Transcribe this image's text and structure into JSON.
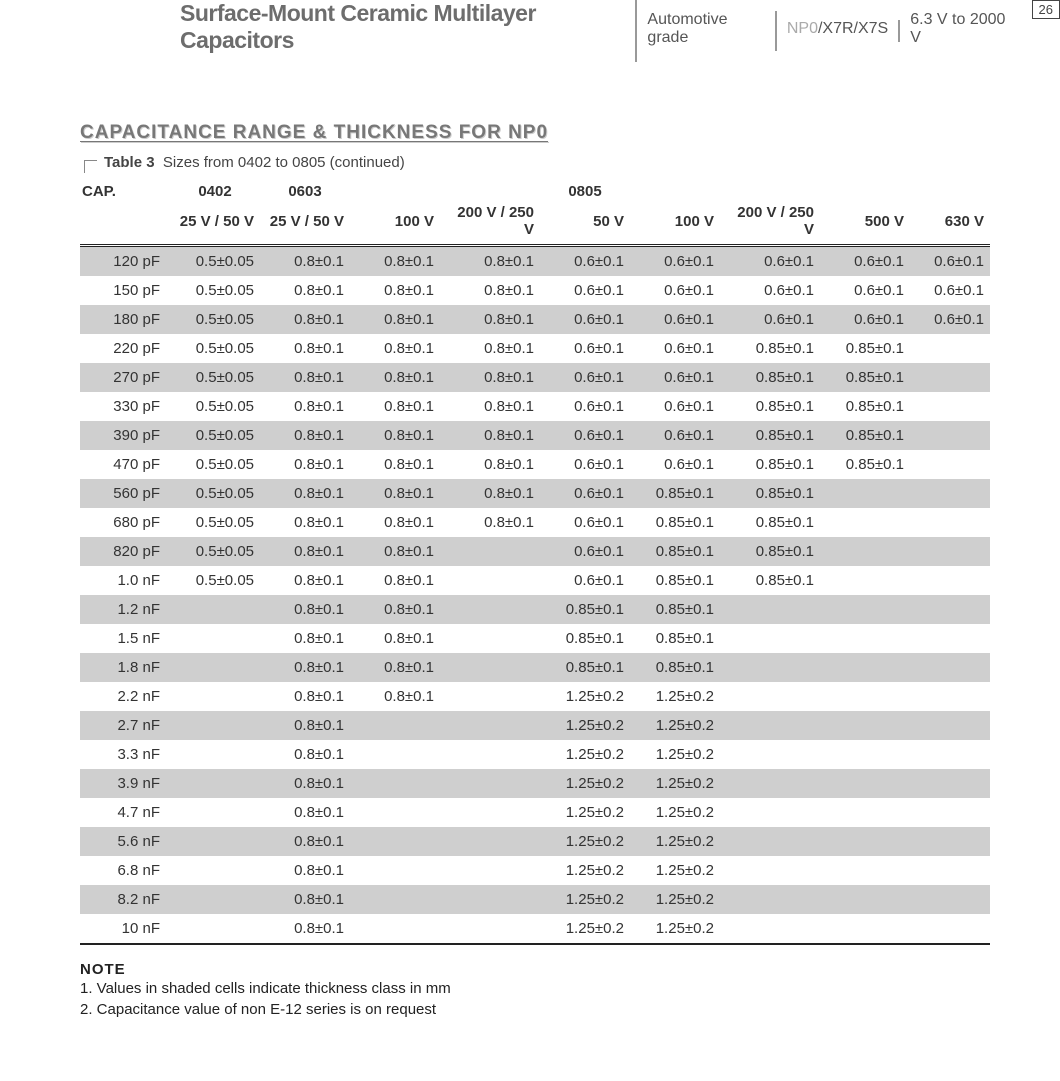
{
  "header": {
    "title": "Surface-Mount Ceramic Multilayer Capacitors",
    "grade": "Automotive grade",
    "dielectric_gray": "NP0",
    "dielectric_rest": "/X7R/X7S",
    "voltage": "6.3 V to 2000 V",
    "page": "26"
  },
  "section_title": "CAPACITANCE RANGE & THICKNESS FOR NP0",
  "table_label": "Table 3",
  "table_desc": "Sizes from 0402 to 0805 (continued)",
  "columns": {
    "cap": "CAP.",
    "sizes": [
      "0402",
      "0603",
      "0805"
    ],
    "voltages": [
      "25 V / 50 V",
      "25 V / 50 V",
      "100 V",
      "200 V / 250 V",
      "50 V",
      "100 V",
      "200 V / 250 V",
      "500 V",
      "630 V"
    ]
  },
  "rows": [
    {
      "cap": "120 pF",
      "v": [
        "0.5±0.05",
        "0.8±0.1",
        "0.8±0.1",
        "0.8±0.1",
        "0.6±0.1",
        "0.6±0.1",
        "0.6±0.1",
        "0.6±0.1",
        "0.6±0.1"
      ]
    },
    {
      "cap": "150 pF",
      "v": [
        "0.5±0.05",
        "0.8±0.1",
        "0.8±0.1",
        "0.8±0.1",
        "0.6±0.1",
        "0.6±0.1",
        "0.6±0.1",
        "0.6±0.1",
        "0.6±0.1"
      ]
    },
    {
      "cap": "180 pF",
      "v": [
        "0.5±0.05",
        "0.8±0.1",
        "0.8±0.1",
        "0.8±0.1",
        "0.6±0.1",
        "0.6±0.1",
        "0.6±0.1",
        "0.6±0.1",
        "0.6±0.1"
      ]
    },
    {
      "cap": "220 pF",
      "v": [
        "0.5±0.05",
        "0.8±0.1",
        "0.8±0.1",
        "0.8±0.1",
        "0.6±0.1",
        "0.6±0.1",
        "0.85±0.1",
        "0.85±0.1",
        ""
      ]
    },
    {
      "cap": "270 pF",
      "v": [
        "0.5±0.05",
        "0.8±0.1",
        "0.8±0.1",
        "0.8±0.1",
        "0.6±0.1",
        "0.6±0.1",
        "0.85±0.1",
        "0.85±0.1",
        ""
      ]
    },
    {
      "cap": "330 pF",
      "v": [
        "0.5±0.05",
        "0.8±0.1",
        "0.8±0.1",
        "0.8±0.1",
        "0.6±0.1",
        "0.6±0.1",
        "0.85±0.1",
        "0.85±0.1",
        ""
      ]
    },
    {
      "cap": "390 pF",
      "v": [
        "0.5±0.05",
        "0.8±0.1",
        "0.8±0.1",
        "0.8±0.1",
        "0.6±0.1",
        "0.6±0.1",
        "0.85±0.1",
        "0.85±0.1",
        ""
      ]
    },
    {
      "cap": "470 pF",
      "v": [
        "0.5±0.05",
        "0.8±0.1",
        "0.8±0.1",
        "0.8±0.1",
        "0.6±0.1",
        "0.6±0.1",
        "0.85±0.1",
        "0.85±0.1",
        ""
      ]
    },
    {
      "cap": "560 pF",
      "v": [
        "0.5±0.05",
        "0.8±0.1",
        "0.8±0.1",
        "0.8±0.1",
        "0.6±0.1",
        "0.85±0.1",
        "0.85±0.1",
        "",
        ""
      ]
    },
    {
      "cap": "680 pF",
      "v": [
        "0.5±0.05",
        "0.8±0.1",
        "0.8±0.1",
        "0.8±0.1",
        "0.6±0.1",
        "0.85±0.1",
        "0.85±0.1",
        "",
        ""
      ]
    },
    {
      "cap": "820 pF",
      "v": [
        "0.5±0.05",
        "0.8±0.1",
        "0.8±0.1",
        "",
        "0.6±0.1",
        "0.85±0.1",
        "0.85±0.1",
        "",
        ""
      ]
    },
    {
      "cap": "1.0 nF",
      "v": [
        "0.5±0.05",
        "0.8±0.1",
        "0.8±0.1",
        "",
        "0.6±0.1",
        "0.85±0.1",
        "0.85±0.1",
        "",
        ""
      ]
    },
    {
      "cap": "1.2 nF",
      "v": [
        "",
        "0.8±0.1",
        "0.8±0.1",
        "",
        "0.85±0.1",
        "0.85±0.1",
        "",
        "",
        ""
      ]
    },
    {
      "cap": "1.5 nF",
      "v": [
        "",
        "0.8±0.1",
        "0.8±0.1",
        "",
        "0.85±0.1",
        "0.85±0.1",
        "",
        "",
        ""
      ]
    },
    {
      "cap": "1.8 nF",
      "v": [
        "",
        "0.8±0.1",
        "0.8±0.1",
        "",
        "0.85±0.1",
        "0.85±0.1",
        "",
        "",
        ""
      ]
    },
    {
      "cap": "2.2 nF",
      "v": [
        "",
        "0.8±0.1",
        "0.8±0.1",
        "",
        "1.25±0.2",
        "1.25±0.2",
        "",
        "",
        ""
      ]
    },
    {
      "cap": "2.7 nF",
      "v": [
        "",
        "0.8±0.1",
        "",
        "",
        "1.25±0.2",
        "1.25±0.2",
        "",
        "",
        ""
      ]
    },
    {
      "cap": "3.3 nF",
      "v": [
        "",
        "0.8±0.1",
        "",
        "",
        "1.25±0.2",
        "1.25±0.2",
        "",
        "",
        ""
      ]
    },
    {
      "cap": "3.9 nF",
      "v": [
        "",
        "0.8±0.1",
        "",
        "",
        "1.25±0.2",
        "1.25±0.2",
        "",
        "",
        ""
      ]
    },
    {
      "cap": "4.7 nF",
      "v": [
        "",
        "0.8±0.1",
        "",
        "",
        "1.25±0.2",
        "1.25±0.2",
        "",
        "",
        ""
      ]
    },
    {
      "cap": "5.6 nF",
      "v": [
        "",
        "0.8±0.1",
        "",
        "",
        "1.25±0.2",
        "1.25±0.2",
        "",
        "",
        ""
      ]
    },
    {
      "cap": "6.8 nF",
      "v": [
        "",
        "0.8±0.1",
        "",
        "",
        "1.25±0.2",
        "1.25±0.2",
        "",
        "",
        ""
      ]
    },
    {
      "cap": "8.2 nF",
      "v": [
        "",
        "0.8±0.1",
        "",
        "",
        "1.25±0.2",
        "1.25±0.2",
        "",
        "",
        ""
      ]
    },
    {
      "cap": "10 nF",
      "v": [
        "",
        "0.8±0.1",
        "",
        "",
        "1.25±0.2",
        "1.25±0.2",
        "",
        "",
        ""
      ]
    }
  ],
  "notes": {
    "title": "NOTE",
    "items": [
      "1.  Values in shaded cells indicate thickness class in mm",
      "2.  Capacitance value of non E-12 series is on request"
    ]
  },
  "style": {
    "odd_bg": "#cfcfcf",
    "header_title_color": "#6d6d6d",
    "section_title_color": "#777777"
  }
}
